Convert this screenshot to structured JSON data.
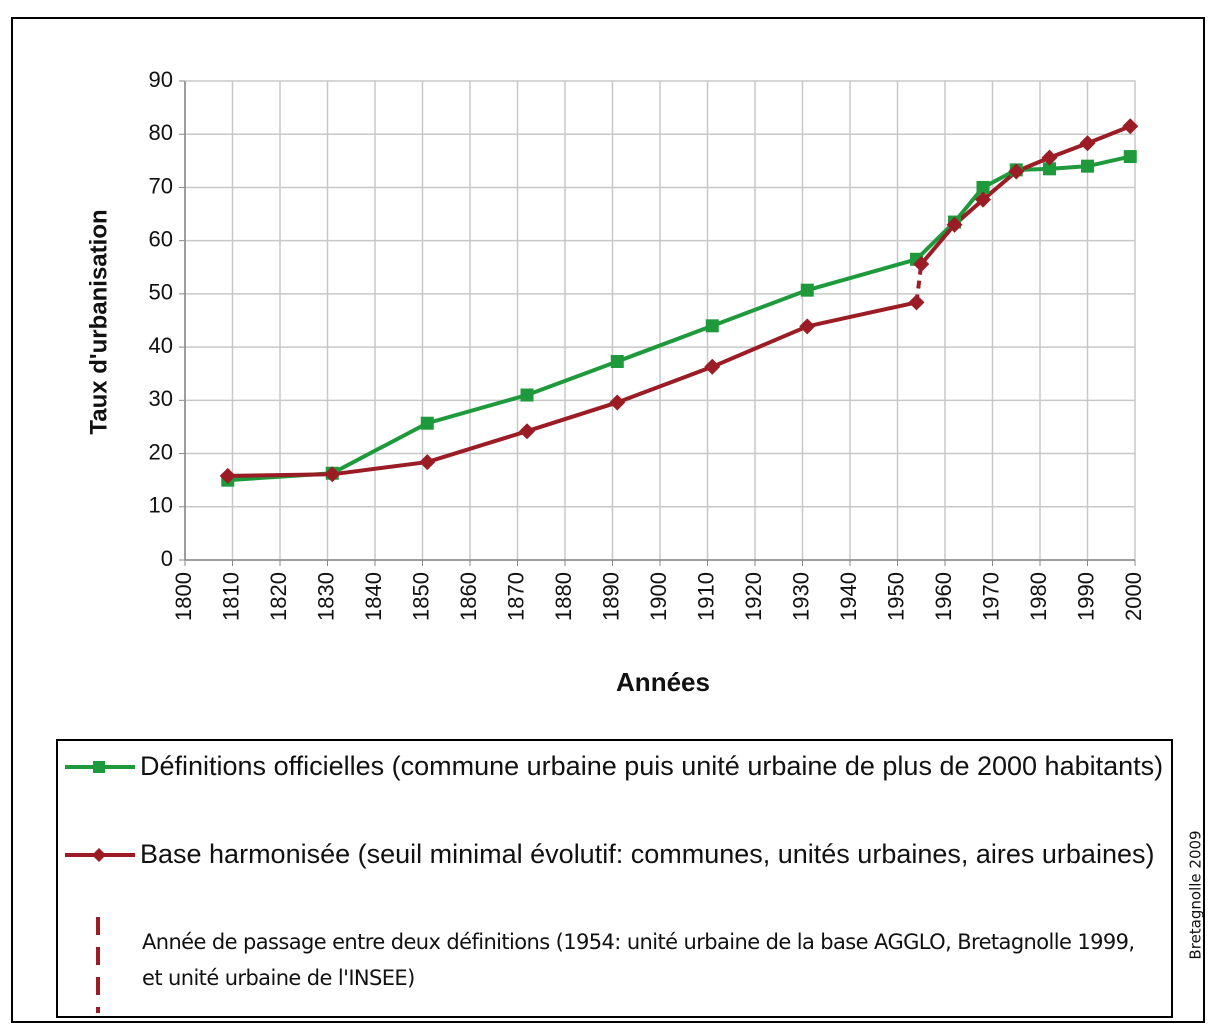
{
  "chart_data": {
    "type": "line",
    "x_label": "Années",
    "y_label": "Taux d'urbanisation",
    "xlim": [
      1800,
      2000
    ],
    "xticks": [
      1800,
      1810,
      1820,
      1830,
      1840,
      1850,
      1860,
      1870,
      1880,
      1890,
      1900,
      1910,
      1920,
      1930,
      1940,
      1950,
      1960,
      1970,
      1980,
      1990,
      2000
    ],
    "ylim": [
      0,
      90
    ],
    "yticks": [
      0,
      10,
      20,
      30,
      40,
      50,
      60,
      70,
      80,
      90
    ],
    "grid": true,
    "series": [
      {
        "name": "Définitions officielles (commune urbaine puis unité urbaine de plus de 2000 habitants)",
        "color": "#1e9a3c",
        "marker": "square",
        "x": [
          1809,
          1831,
          1851,
          1872,
          1891,
          1911,
          1931,
          1954,
          1962,
          1968,
          1975,
          1982,
          1990,
          1999
        ],
        "values": [
          15,
          16.3,
          25.7,
          31,
          37.3,
          44,
          50.7,
          56.5,
          63.5,
          70,
          73.3,
          73.5,
          74,
          75.8
        ]
      },
      {
        "name": "Base harmonisée (seuil minimal évolutif: communes, unités urbaines, aires urbaines)",
        "color": "#9b1c24",
        "marker": "diamond",
        "x": [
          1809,
          1831,
          1851,
          1872,
          1891,
          1911,
          1931,
          1954,
          1954,
          1955,
          1962,
          1968,
          1975,
          1982,
          1990,
          1999
        ],
        "values": [
          15.8,
          16.1,
          18.4,
          24.2,
          29.6,
          36.3,
          43.9,
          48.4,
          null,
          55.6,
          63,
          67.7,
          73,
          75.6,
          78.3,
          81.5
        ]
      }
    ],
    "transition_note": "Année de passage entre deux définitions (1954: unité urbaine de la base AGGLO, Bretagnolle 1999, et unité urbaine de l'INSEE)",
    "source": "Bretagnolle 2009"
  }
}
